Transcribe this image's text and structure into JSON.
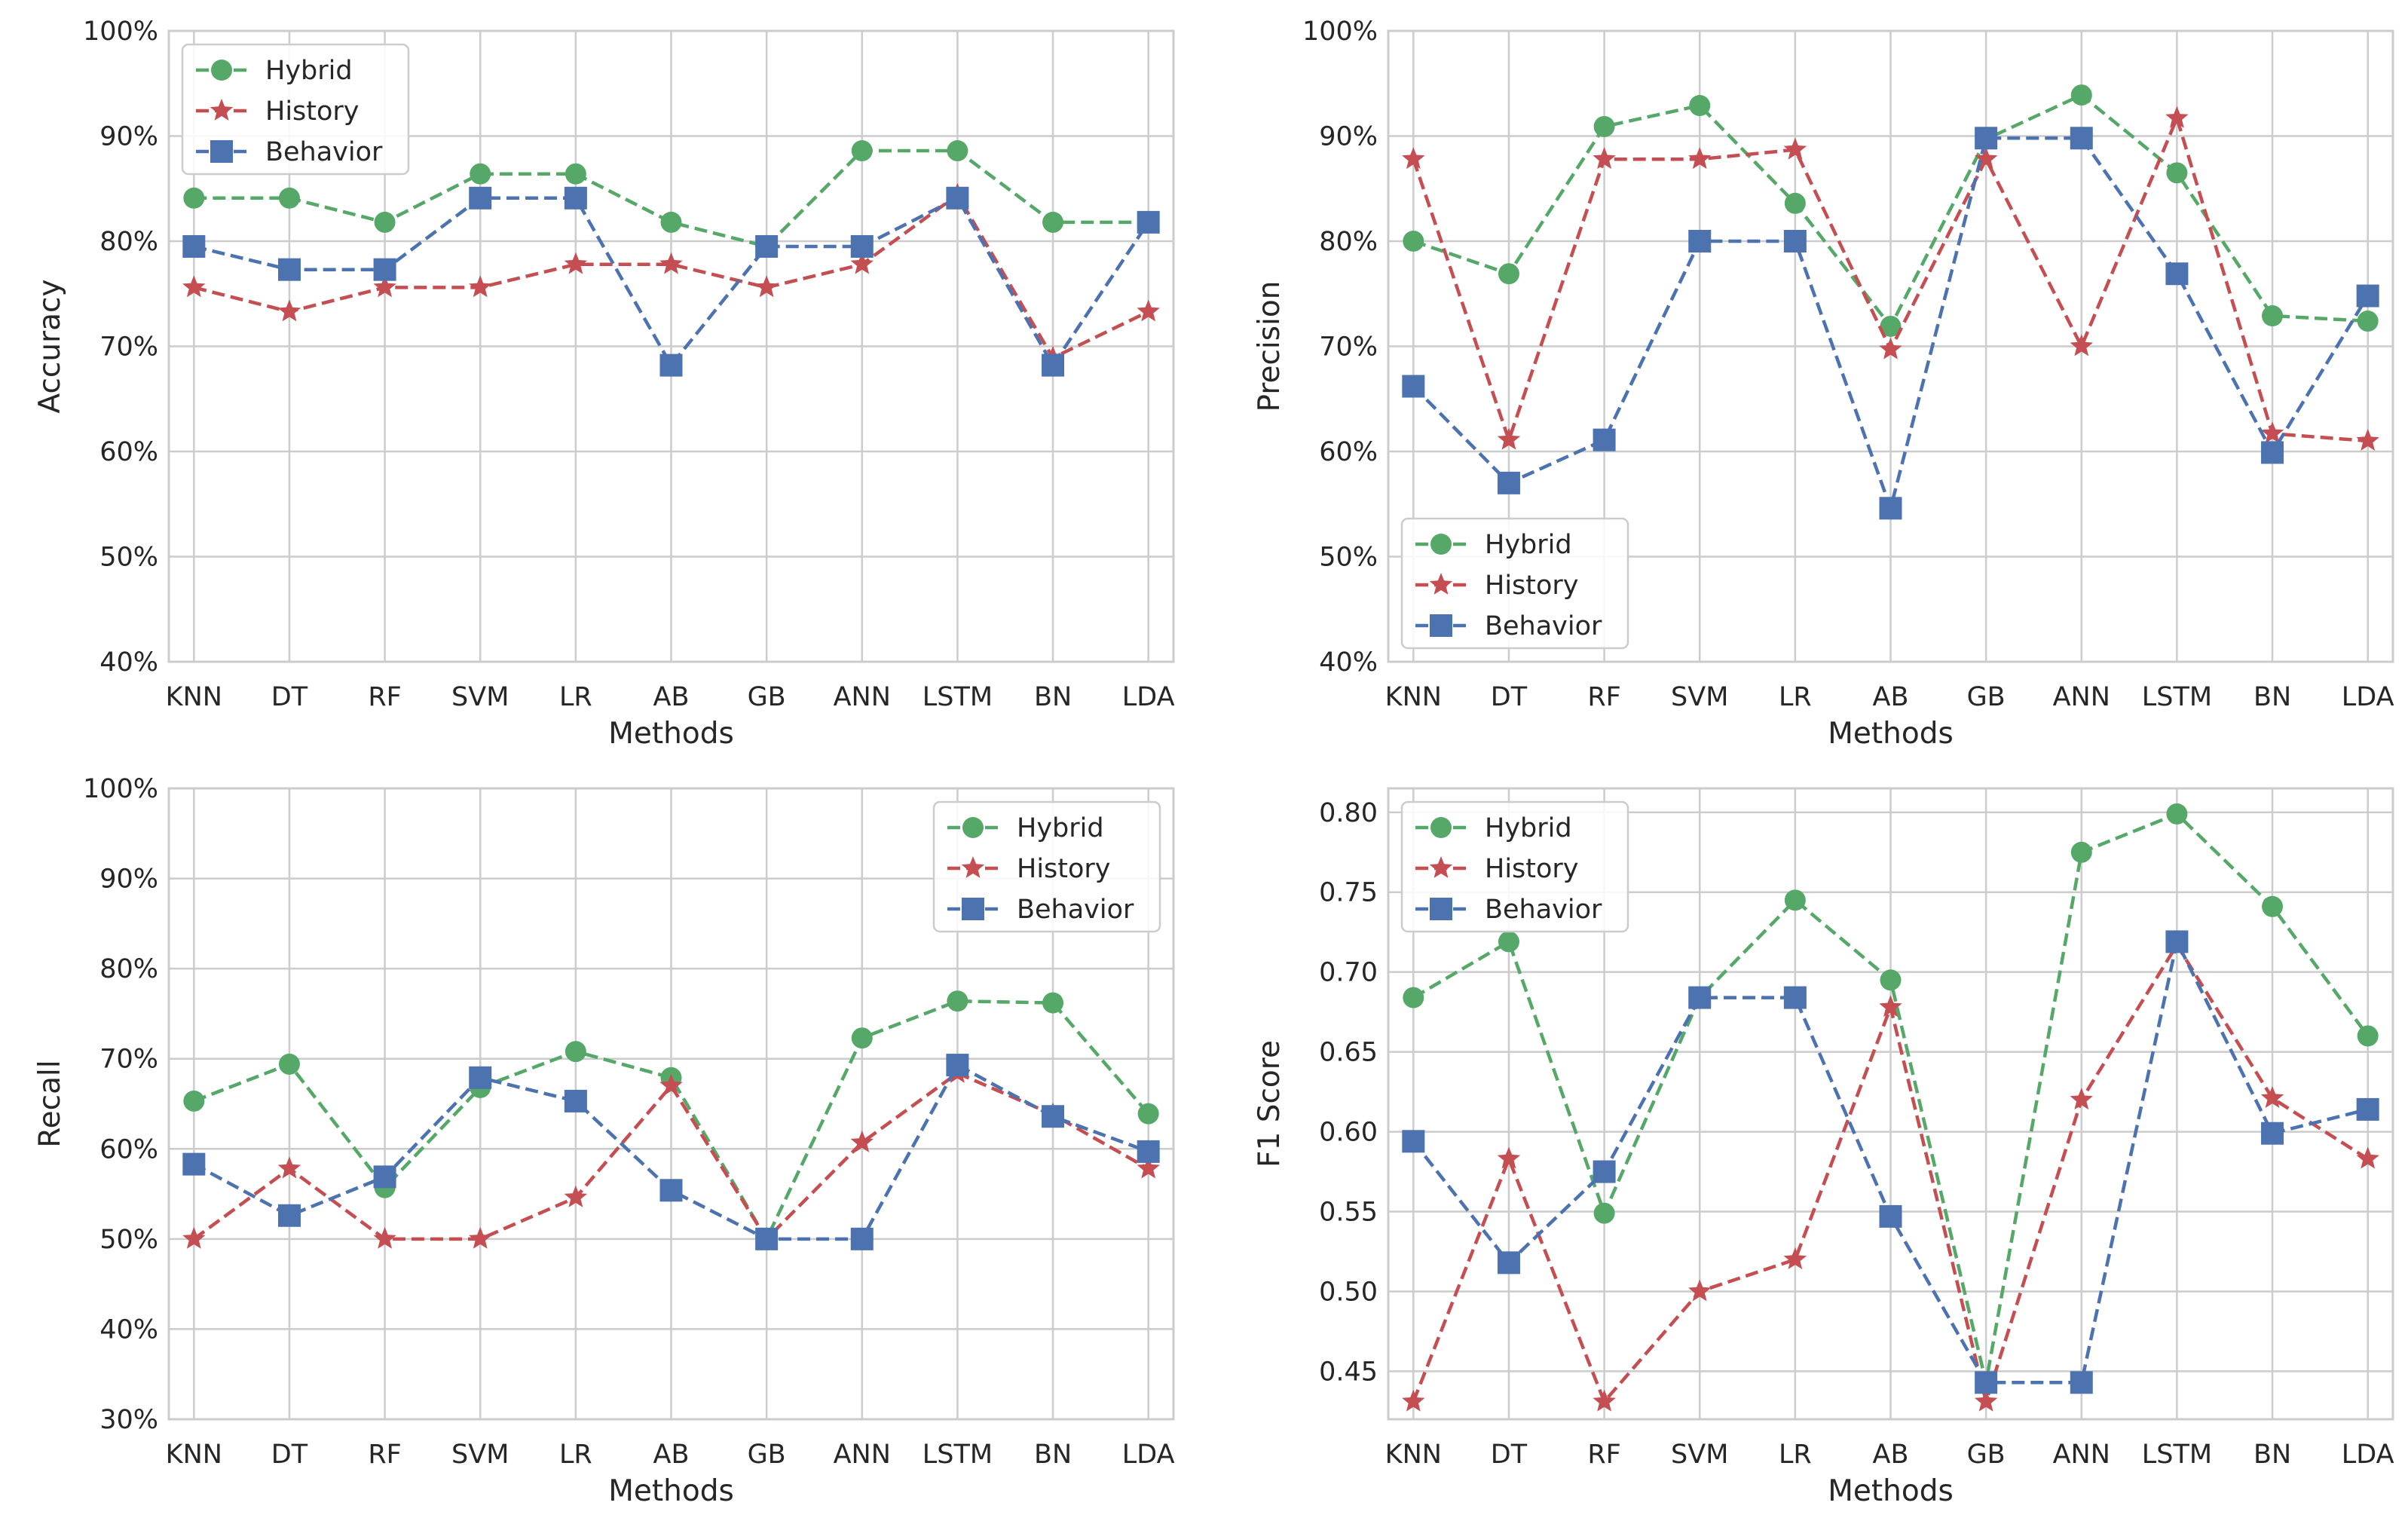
{
  "colors": {
    "Hybrid": "#55a868",
    "History": "#c44e52",
    "Behavior": "#4c72b0",
    "grid": "#cccccc",
    "frame": "#cccccc",
    "text": "#262626"
  },
  "chart_data": [
    {
      "type": "line",
      "categories": [
        "KNN",
        "DT",
        "RF",
        "SVM",
        "LR",
        "AB",
        "GB",
        "ANN",
        "LSTM",
        "BN",
        "LDA"
      ],
      "xlabel": "Methods",
      "ylabel": "Accuracy",
      "ylim": [
        40,
        100
      ],
      "yticks": [
        40,
        50,
        60,
        70,
        80,
        90,
        100
      ],
      "ytick_labels": [
        "40%",
        "50%",
        "60%",
        "70%",
        "80%",
        "90%",
        "100%"
      ],
      "legend_position": "top-left",
      "grid": true,
      "series": [
        {
          "name": "Hybrid",
          "marker": "circle",
          "values": [
            84.1,
            84.1,
            81.8,
            86.4,
            86.4,
            81.8,
            79.5,
            88.6,
            88.6,
            81.8,
            81.8
          ]
        },
        {
          "name": "History",
          "marker": "star",
          "values": [
            75.6,
            73.3,
            75.6,
            75.6,
            77.8,
            77.8,
            75.6,
            77.8,
            84.4,
            68.9,
            73.3
          ]
        },
        {
          "name": "Behavior",
          "marker": "square",
          "values": [
            79.5,
            77.3,
            77.3,
            84.1,
            84.1,
            68.2,
            79.5,
            79.5,
            84.1,
            68.2,
            81.8
          ]
        }
      ]
    },
    {
      "type": "line",
      "categories": [
        "KNN",
        "DT",
        "RF",
        "SVM",
        "LR",
        "AB",
        "GB",
        "ANN",
        "LSTM",
        "BN",
        "LDA"
      ],
      "xlabel": "Methods",
      "ylabel": "Precision",
      "ylim": [
        40,
        100
      ],
      "yticks": [
        40,
        50,
        60,
        70,
        80,
        90,
        100
      ],
      "ytick_labels": [
        "40%",
        "50%",
        "60%",
        "70%",
        "80%",
        "90%",
        "100%"
      ],
      "legend_position": "bottom-left",
      "grid": true,
      "series": [
        {
          "name": "Hybrid",
          "marker": "circle",
          "values": [
            80.0,
            76.9,
            90.9,
            92.9,
            83.6,
            71.9,
            89.7,
            93.9,
            86.5,
            72.9,
            72.4
          ]
        },
        {
          "name": "History",
          "marker": "star",
          "values": [
            87.8,
            61.1,
            87.8,
            87.8,
            88.7,
            69.7,
            87.8,
            70.0,
            91.7,
            61.7,
            61.0
          ]
        },
        {
          "name": "Behavior",
          "marker": "square",
          "values": [
            66.2,
            57.0,
            61.1,
            80.0,
            80.0,
            54.6,
            89.8,
            89.8,
            76.9,
            59.9,
            74.8
          ]
        }
      ]
    },
    {
      "type": "line",
      "categories": [
        "KNN",
        "DT",
        "RF",
        "SVM",
        "LR",
        "AB",
        "GB",
        "ANN",
        "LSTM",
        "BN",
        "LDA"
      ],
      "xlabel": "Methods",
      "ylabel": "Recall",
      "ylim": [
        30,
        100
      ],
      "yticks": [
        30,
        40,
        50,
        60,
        70,
        80,
        90,
        100
      ],
      "ytick_labels": [
        "30%",
        "40%",
        "50%",
        "60%",
        "70%",
        "80%",
        "90%",
        "100%"
      ],
      "legend_position": "top-right",
      "grid": true,
      "series": [
        {
          "name": "Hybrid",
          "marker": "circle",
          "values": [
            65.3,
            69.4,
            55.7,
            66.8,
            70.8,
            67.9,
            50.0,
            72.3,
            76.4,
            76.2,
            63.9
          ]
        },
        {
          "name": "History",
          "marker": "star",
          "values": [
            50.0,
            57.8,
            50.0,
            50.0,
            54.6,
            67.0,
            50.0,
            60.7,
            68.4,
            63.8,
            57.8
          ]
        },
        {
          "name": "Behavior",
          "marker": "square",
          "values": [
            58.3,
            52.6,
            56.9,
            67.9,
            65.3,
            55.4,
            50.0,
            50.0,
            69.3,
            63.6,
            59.7
          ]
        }
      ]
    },
    {
      "type": "line",
      "categories": [
        "KNN",
        "DT",
        "RF",
        "SVM",
        "LR",
        "AB",
        "GB",
        "ANN",
        "LSTM",
        "BN",
        "LDA"
      ],
      "xlabel": "Methods",
      "ylabel": "F1 Score",
      "ylim": [
        0.42,
        0.815
      ],
      "yticks": [
        0.45,
        0.5,
        0.55,
        0.6,
        0.65,
        0.7,
        0.75,
        0.8
      ],
      "ytick_labels": [
        "0.45",
        "0.50",
        "0.55",
        "0.60",
        "0.65",
        "0.70",
        "0.75",
        "0.80"
      ],
      "legend_position": "top-left",
      "grid": true,
      "series": [
        {
          "name": "Hybrid",
          "marker": "circle",
          "values": [
            0.684,
            0.719,
            0.549,
            0.684,
            0.745,
            0.695,
            0.443,
            0.775,
            0.799,
            0.741,
            0.66
          ]
        },
        {
          "name": "History",
          "marker": "star",
          "values": [
            0.431,
            0.583,
            0.431,
            0.5,
            0.52,
            0.678,
            0.431,
            0.62,
            0.717,
            0.621,
            0.583
          ]
        },
        {
          "name": "Behavior",
          "marker": "square",
          "values": [
            0.594,
            0.518,
            0.575,
            0.684,
            0.684,
            0.547,
            0.443,
            0.443,
            0.719,
            0.599,
            0.614
          ]
        }
      ]
    }
  ]
}
